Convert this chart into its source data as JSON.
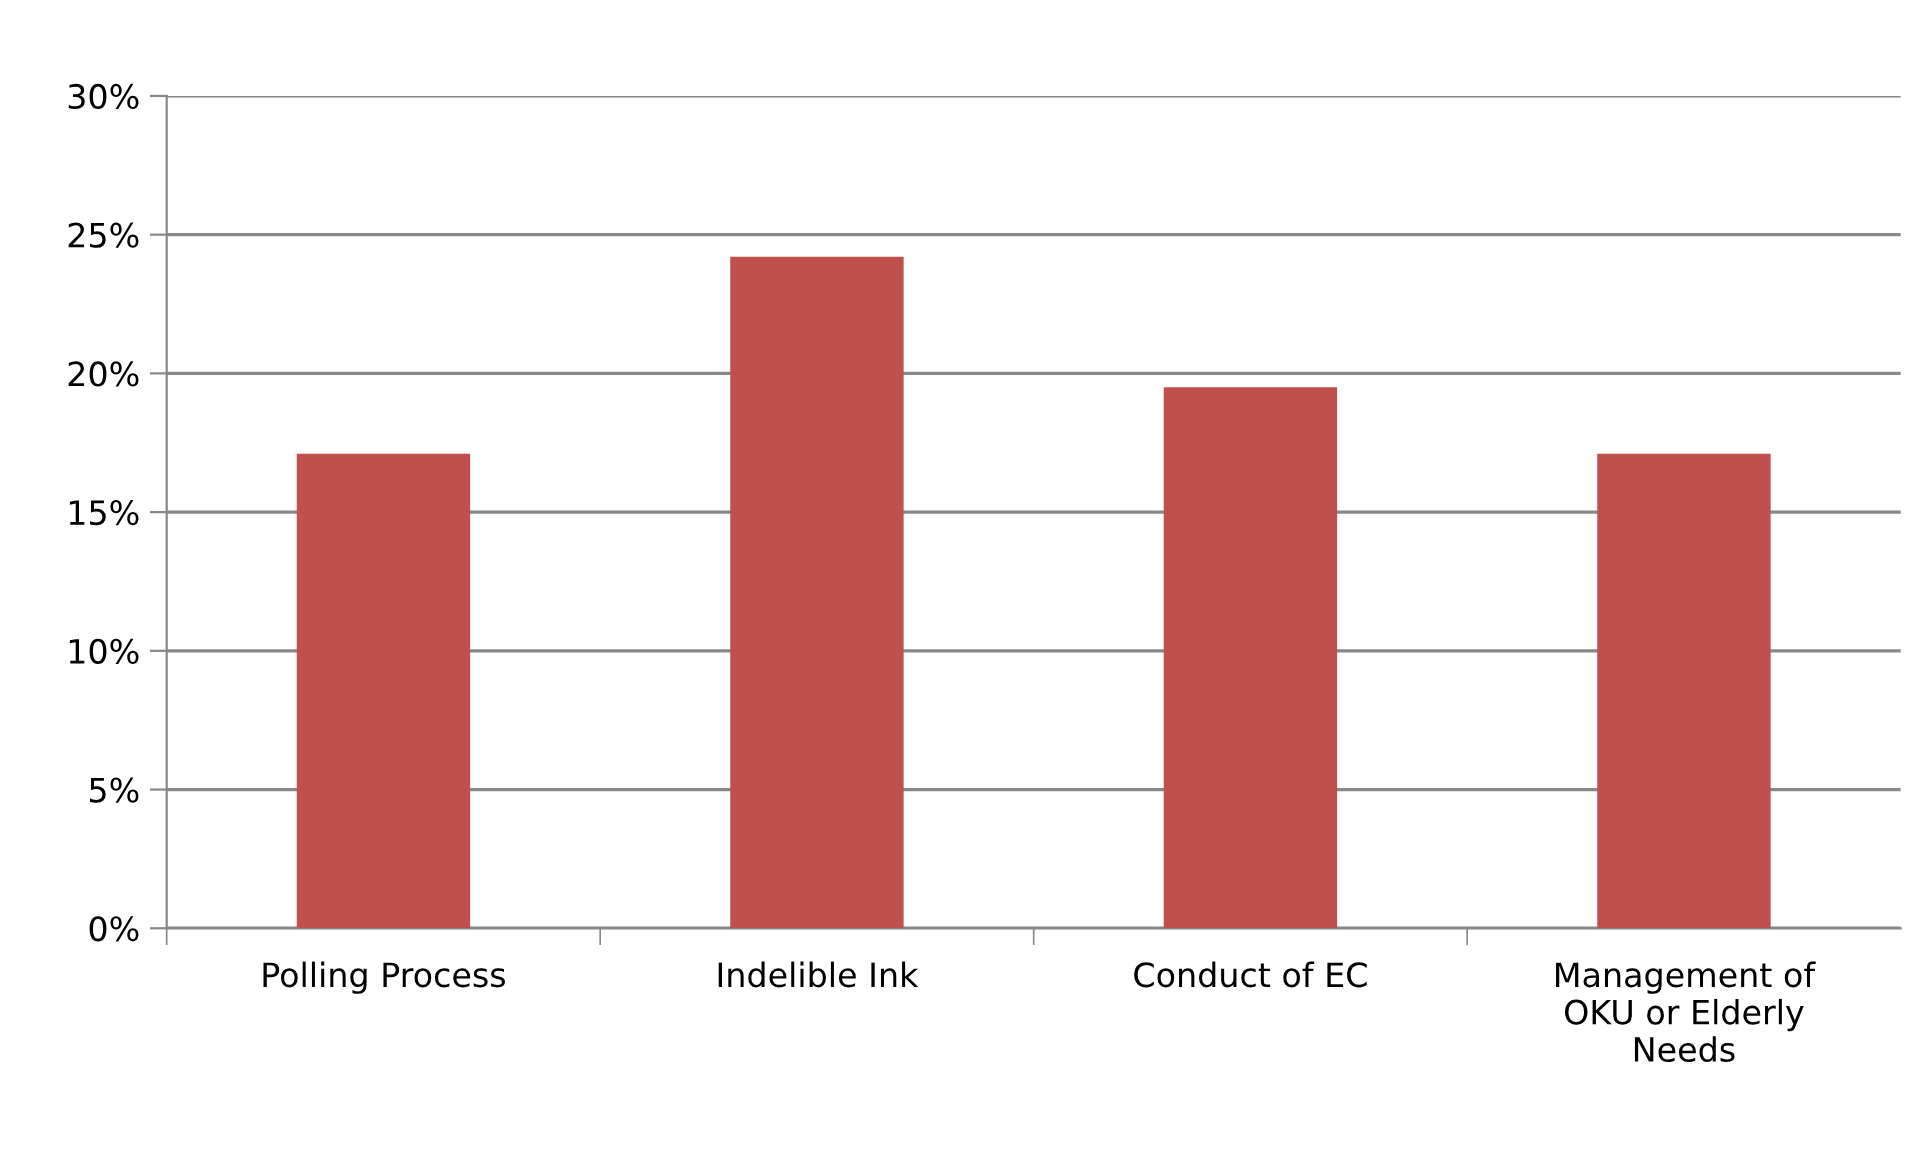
{
  "chart_data": {
    "type": "bar",
    "categories": [
      "Polling Process",
      "Indelible Ink",
      "Conduct of EC",
      "Management of\nOKU or Elderly\nNeeds"
    ],
    "values": [
      17.1,
      24.2,
      19.5,
      17.1
    ],
    "color": "#c0504d",
    "ylim": [
      0,
      30
    ],
    "yticks": [
      {
        "value": 0,
        "label": "0%"
      },
      {
        "value": 5,
        "label": "5%"
      },
      {
        "value": 10,
        "label": "10%"
      },
      {
        "value": 15,
        "label": "15%"
      },
      {
        "value": 20,
        "label": "20%"
      },
      {
        "value": 25,
        "label": "25%"
      },
      {
        "value": 30,
        "label": "30%"
      }
    ],
    "grid": "y",
    "legend": false
  }
}
